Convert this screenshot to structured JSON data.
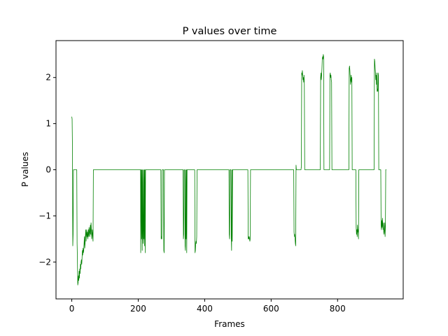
{
  "chart_data": {
    "type": "line",
    "title": "P values over time",
    "xlabel": "Frames",
    "ylabel": "P values",
    "xlim": [
      -47.5,
      997.5
    ],
    "ylim": [
      -2.8,
      2.8
    ],
    "xticks": [
      0,
      200,
      400,
      600,
      800
    ],
    "yticks": [
      -2,
      -1,
      0,
      1,
      2
    ],
    "grid": false,
    "series": [
      {
        "color": "#008000",
        "points": [
          [
            0,
            1.15
          ],
          [
            1,
            1.1
          ],
          [
            2,
            0.5
          ],
          [
            3,
            -1.65
          ],
          [
            4,
            -1.4
          ],
          [
            5,
            0.0
          ],
          [
            7,
            0.0
          ],
          [
            12,
            0.0
          ],
          [
            15,
            0.0
          ],
          [
            16,
            -1.6
          ],
          [
            17,
            -1.95
          ],
          [
            18,
            -2.5
          ],
          [
            19,
            -2.45
          ],
          [
            20,
            -2.3
          ],
          [
            21,
            -2.4
          ],
          [
            22,
            -2.2
          ],
          [
            23,
            -2.35
          ],
          [
            24,
            -2.15
          ],
          [
            25,
            -2.25
          ],
          [
            26,
            -2.05
          ],
          [
            27,
            -2.15
          ],
          [
            28,
            -2.0
          ],
          [
            29,
            -1.95
          ],
          [
            30,
            -2.05
          ],
          [
            31,
            -1.9
          ],
          [
            32,
            -1.75
          ],
          [
            33,
            -1.85
          ],
          [
            34,
            -1.7
          ],
          [
            35,
            -1.8
          ],
          [
            36,
            -1.75
          ],
          [
            37,
            -1.6
          ],
          [
            38,
            -1.45
          ],
          [
            39,
            -1.7
          ],
          [
            40,
            -1.6
          ],
          [
            41,
            -1.45
          ],
          [
            42,
            -1.3
          ],
          [
            43,
            -1.55
          ],
          [
            44,
            -1.4
          ],
          [
            45,
            -1.3
          ],
          [
            46,
            -1.45
          ],
          [
            47,
            -1.35
          ],
          [
            48,
            -1.5
          ],
          [
            49,
            -1.4
          ],
          [
            50,
            -1.3
          ],
          [
            51,
            -1.45
          ],
          [
            52,
            -1.25
          ],
          [
            53,
            -1.35
          ],
          [
            54,
            -1.45
          ],
          [
            55,
            -1.3
          ],
          [
            56,
            -1.2
          ],
          [
            57,
            -1.4
          ],
          [
            58,
            -1.15
          ],
          [
            59,
            -1.3
          ],
          [
            60,
            -1.5
          ],
          [
            61,
            -1.4
          ],
          [
            62,
            -1.3
          ],
          [
            63,
            -1.45
          ],
          [
            64,
            -1.55
          ],
          [
            65,
            0.0
          ],
          [
            207,
            0.0
          ],
          [
            207.5,
            -1.8
          ],
          [
            208,
            -1.2
          ],
          [
            209,
            0.0
          ],
          [
            210,
            -1.5
          ],
          [
            211,
            0.0
          ],
          [
            212,
            -1.75
          ],
          [
            213,
            0.0
          ],
          [
            214,
            -1.45
          ],
          [
            215,
            -1.6
          ],
          [
            216,
            0.0
          ],
          [
            217,
            -1.5
          ],
          [
            218,
            0.0
          ],
          [
            219,
            -1.65
          ],
          [
            220,
            0.0
          ],
          [
            221,
            -1.8
          ],
          [
            222,
            0.0
          ],
          [
            268,
            0.0
          ],
          [
            269,
            -1.5
          ],
          [
            270,
            -1.45
          ],
          [
            271,
            -1.5
          ],
          [
            272,
            0.0
          ],
          [
            276,
            0.0
          ],
          [
            277,
            -1.75
          ],
          [
            278,
            -1.8
          ],
          [
            279,
            0.0
          ],
          [
            335,
            0.0
          ],
          [
            336,
            -1.5
          ],
          [
            337,
            -1.4
          ],
          [
            338,
            0.0
          ],
          [
            340,
            0.0
          ],
          [
            341,
            -1.65
          ],
          [
            342,
            -1.75
          ],
          [
            343,
            0.0
          ],
          [
            344,
            -1.5
          ],
          [
            345,
            0.0
          ],
          [
            346,
            -1.8
          ],
          [
            347,
            0.0
          ],
          [
            370,
            0.0
          ],
          [
            371,
            -1.8
          ],
          [
            372,
            -1.75
          ],
          [
            373,
            -1.6
          ],
          [
            374,
            -1.55
          ],
          [
            375,
            -1.6
          ],
          [
            376,
            -1.45
          ],
          [
            377,
            0.0
          ],
          [
            378,
            0.0
          ],
          [
            473,
            0.0
          ],
          [
            474,
            -1.4
          ],
          [
            475,
            -1.5
          ],
          [
            476,
            0.0
          ],
          [
            479,
            0.0
          ],
          [
            480,
            -1.45
          ],
          [
            481,
            -1.75
          ],
          [
            482,
            0.0
          ],
          [
            483,
            -1.55
          ],
          [
            484,
            0.0
          ],
          [
            530,
            0.0
          ],
          [
            531,
            -1.5
          ],
          [
            532,
            -1.45
          ],
          [
            533,
            -1.5
          ],
          [
            534,
            -1.45
          ],
          [
            535,
            -1.5
          ],
          [
            536,
            -1.55
          ],
          [
            537,
            -1.5
          ],
          [
            538,
            0.0
          ],
          [
            668,
            0.0
          ],
          [
            669,
            -1.35
          ],
          [
            670,
            -1.45
          ],
          [
            671,
            -1.4
          ],
          [
            672,
            -1.5
          ],
          [
            673,
            -1.6
          ],
          [
            674,
            -1.65
          ],
          [
            675,
            0.1
          ],
          [
            676,
            0.0
          ],
          [
            690,
            0.0
          ],
          [
            690.5,
            0.05
          ],
          [
            691,
            0.05
          ],
          [
            692,
            2.1
          ],
          [
            693,
            2.05
          ],
          [
            694,
            2.15
          ],
          [
            695,
            2.05
          ],
          [
            696,
            1.95
          ],
          [
            697,
            2.0
          ],
          [
            698,
            1.9
          ],
          [
            699,
            2.05
          ],
          [
            700,
            1.85
          ],
          [
            701,
            0.0
          ],
          [
            748,
            0.0
          ],
          [
            749,
            2.0
          ],
          [
            750,
            2.1
          ],
          [
            751,
            1.95
          ],
          [
            752,
            2.05
          ],
          [
            753,
            2.2
          ],
          [
            754,
            2.4
          ],
          [
            755,
            2.45
          ],
          [
            756,
            2.4
          ],
          [
            757,
            2.5
          ],
          [
            758,
            2.45
          ],
          [
            759,
            0.0
          ],
          [
            776,
            0.0
          ],
          [
            777,
            2.05
          ],
          [
            778,
            2.1
          ],
          [
            779,
            2.0
          ],
          [
            780,
            2.05
          ],
          [
            781,
            1.95
          ],
          [
            782,
            1.9
          ],
          [
            783,
            0.0
          ],
          [
            834,
            0.0
          ],
          [
            835,
            2.2
          ],
          [
            836,
            2.25
          ],
          [
            837,
            2.15
          ],
          [
            838,
            2.0
          ],
          [
            839,
            1.85
          ],
          [
            840,
            1.95
          ],
          [
            841,
            2.05
          ],
          [
            842,
            1.9
          ],
          [
            843,
            2.0
          ],
          [
            844,
            0.0
          ],
          [
            855,
            0.0
          ],
          [
            856,
            -1.25
          ],
          [
            857,
            -1.4
          ],
          [
            858,
            -1.3
          ],
          [
            859,
            -1.45
          ],
          [
            860,
            -1.2
          ],
          [
            861,
            -1.35
          ],
          [
            862,
            -1.3
          ],
          [
            863,
            -1.5
          ],
          [
            864,
            0.0
          ],
          [
            910,
            0.0
          ],
          [
            911,
            2.4
          ],
          [
            912,
            2.35
          ],
          [
            913,
            2.2
          ],
          [
            914,
            2.1
          ],
          [
            915,
            1.95
          ],
          [
            916,
            2.05
          ],
          [
            917,
            1.85
          ],
          [
            918,
            2.1
          ],
          [
            919,
            1.7
          ],
          [
            920,
            1.75
          ],
          [
            921,
            1.7
          ],
          [
            922,
            2.1
          ],
          [
            923,
            2.05
          ],
          [
            924,
            0.0
          ],
          [
            930,
            0.0
          ],
          [
            931,
            -1.2
          ],
          [
            932,
            -1.3
          ],
          [
            933,
            -1.1
          ],
          [
            934,
            -1.25
          ],
          [
            935,
            -1.05
          ],
          [
            936,
            -1.2
          ],
          [
            937,
            -1.3
          ],
          [
            938,
            -1.15
          ],
          [
            939,
            -1.35
          ],
          [
            940,
            -1.4
          ],
          [
            941,
            -1.3
          ],
          [
            942,
            -1.15
          ],
          [
            943,
            -1.45
          ],
          [
            944,
            -1.2
          ],
          [
            945,
            0.0
          ],
          [
            947,
            0.0
          ]
        ]
      }
    ]
  }
}
